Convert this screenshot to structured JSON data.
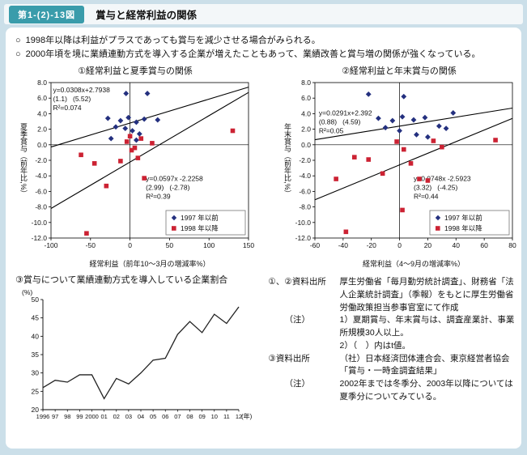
{
  "header": {
    "figure_label": "第1-(2)-13図",
    "title": "賞与と経常利益の関係"
  },
  "bullets": {
    "marker": "○",
    "items": [
      "1998年以降は利益がプラスであっても賞与を減少させる場合がみられる。",
      "2000年頃を境に業績連動方式を導入する企業が増えたこともあって、業績改善と賞与増の関係が強くなっている。"
    ]
  },
  "chart_data": [
    {
      "type": "scatter",
      "title": "①経常利益と夏季賞与の関係",
      "xlabel": "経常利益（前年10～3月の増減率%）",
      "ylabel": "夏季賞与（前年比,%）",
      "xlim": [
        -100,
        150
      ],
      "ylim": [
        -12,
        8
      ],
      "x_ticks": [
        -100,
        -50,
        0,
        50,
        100,
        150
      ],
      "y_ticks": [
        8,
        6,
        4,
        2,
        0,
        -2,
        -4,
        -6,
        -8,
        -10,
        -12
      ],
      "grid": false,
      "legend_position": "bottom-right",
      "series": [
        {
          "name": "1997 年以前",
          "marker": "diamond",
          "color": "#24307f",
          "points": [
            [
              -5,
              6.6
            ],
            [
              22,
              6.6
            ],
            [
              -28,
              3.4
            ],
            [
              -12,
              3.1
            ],
            [
              -2,
              3.5
            ],
            [
              8,
              2.9
            ],
            [
              18,
              3.3
            ],
            [
              35,
              3.2
            ],
            [
              -18,
              2.3
            ],
            [
              -6,
              2.1
            ],
            [
              3,
              1.8
            ],
            [
              12,
              1.4
            ],
            [
              -24,
              0.8
            ],
            [
              8,
              0.6
            ]
          ]
        },
        {
          "name": "1998 年以降",
          "marker": "square",
          "color": "#cc2233",
          "points": [
            [
              -62,
              -1.3
            ],
            [
              -45,
              -2.4
            ],
            [
              -30,
              -5.3
            ],
            [
              -12,
              -2.1
            ],
            [
              -4,
              0.4
            ],
            [
              0,
              1.1
            ],
            [
              6,
              -0.4
            ],
            [
              10,
              -1.7
            ],
            [
              18,
              -4.3
            ],
            [
              28,
              0.2
            ],
            [
              130,
              1.8
            ],
            [
              -55,
              -11.4
            ],
            [
              14,
              0.8
            ],
            [
              2,
              -0.7
            ]
          ]
        }
      ],
      "trendlines": [
        {
          "slope": 0.0308,
          "intercept": 2.7938,
          "label": [
            "y=0.0308x+2.7938",
            "(1.1)   (5.52)",
            "R²=0.074"
          ],
          "label_pos": [
            0.01,
            0.01
          ]
        },
        {
          "slope": 0.0597,
          "intercept": -2.2258,
          "label": [
            "y=0.0597x -2.2258",
            "(2.99)   (-2.78)",
            "R²=0.39"
          ],
          "label_pos": [
            0.48,
            0.58
          ]
        }
      ]
    },
    {
      "type": "scatter",
      "title": "②経常利益と年末賞与の関係",
      "xlabel": "経常利益（4～9月の増減率%）",
      "ylabel": "年末賞与（前年比,%）",
      "xlim": [
        -60,
        80
      ],
      "ylim": [
        -12,
        8
      ],
      "x_ticks": [
        -60,
        -40,
        -20,
        0,
        20,
        40,
        60,
        80
      ],
      "y_ticks": [
        8,
        6,
        4,
        2,
        0,
        -2,
        -4,
        -6,
        -8,
        -10,
        -12
      ],
      "grid": false,
      "legend_position": "bottom-right",
      "series": [
        {
          "name": "1997 年以前",
          "marker": "diamond",
          "color": "#24307f",
          "points": [
            [
              -22,
              6.5
            ],
            [
              3,
              6.2
            ],
            [
              38,
              4.1
            ],
            [
              -15,
              3.4
            ],
            [
              -5,
              3.1
            ],
            [
              2,
              3.6
            ],
            [
              10,
              3.2
            ],
            [
              18,
              3.5
            ],
            [
              28,
              2.4
            ],
            [
              -10,
              2.2
            ],
            [
              0,
              1.8
            ],
            [
              12,
              1.3
            ],
            [
              33,
              2.1
            ],
            [
              20,
              1.0
            ]
          ]
        },
        {
          "name": "1998 年以降",
          "marker": "square",
          "color": "#cc2233",
          "points": [
            [
              -45,
              -4.4
            ],
            [
              -32,
              -1.6
            ],
            [
              -22,
              -1.9
            ],
            [
              -12,
              -3.7
            ],
            [
              -2,
              0.4
            ],
            [
              3,
              -0.6
            ],
            [
              8,
              -2.4
            ],
            [
              14,
              -4.4
            ],
            [
              20,
              -4.6
            ],
            [
              24,
              0.5
            ],
            [
              30,
              -0.3
            ],
            [
              68,
              0.6
            ],
            [
              -38,
              -11.2
            ],
            [
              2,
              -8.4
            ]
          ]
        }
      ],
      "trendlines": [
        {
          "slope": 0.0291,
          "intercept": 2.392,
          "label": [
            "y=0.0291x+2.392",
            "(0.88)   (4.59)",
            "R²=0.05"
          ],
          "label_pos": [
            0.02,
            0.16
          ]
        },
        {
          "slope": 0.0748,
          "intercept": -2.5923,
          "label": [
            "y=0.0748x -2.5923",
            "(3.32)   (-4.25)",
            "R²=0.44"
          ],
          "label_pos": [
            0.5,
            0.58
          ]
        }
      ]
    },
    {
      "type": "line",
      "title": "③賞与について業績連動方式を導入している企業割合",
      "y_unit": "(%)",
      "x_unit": "(年)",
      "ylim": [
        20,
        50
      ],
      "y_ticks": [
        50,
        45,
        40,
        35,
        30,
        25,
        20
      ],
      "x_labels": [
        "1996",
        "97",
        "98",
        "99",
        "2000",
        "01",
        "02",
        "03",
        "04",
        "05",
        "06",
        "07",
        "08",
        "09",
        "10",
        "11",
        "12"
      ],
      "values": [
        26,
        28,
        27.5,
        29.5,
        29.5,
        23,
        28.5,
        27,
        30,
        33.5,
        34,
        40.5,
        44,
        41,
        46,
        43.5,
        48
      ],
      "line_color": "#222222",
      "grid": false
    }
  ],
  "notes": [
    {
      "label": "①、②資料出所",
      "text": "厚生労働省「毎月勤労統計調査」、財務省「法人企業統計調査」（季報）をもとに厚生労働省労働政策担当参事官室にて作成"
    },
    {
      "label": "（注）",
      "text": "1）夏期賞与、年末賞与は、調査産業計、事業所規模30人以上。"
    },
    {
      "label": "",
      "text": "2）（　）内はt値。"
    },
    {
      "label": "③資料出所",
      "text": "（社）日本経済団体連合会、東京経営者協会「賞与・一時金調査結果」"
    },
    {
      "label": "（注）",
      "text": "2002年までは冬季分、2003年以降については夏季分についてみている。"
    }
  ],
  "colors": {
    "accent_teal": "#3a9cab",
    "frame_blue": "#cbdfe9",
    "series_pre1997": "#24307f",
    "series_post1998": "#cc2233"
  }
}
